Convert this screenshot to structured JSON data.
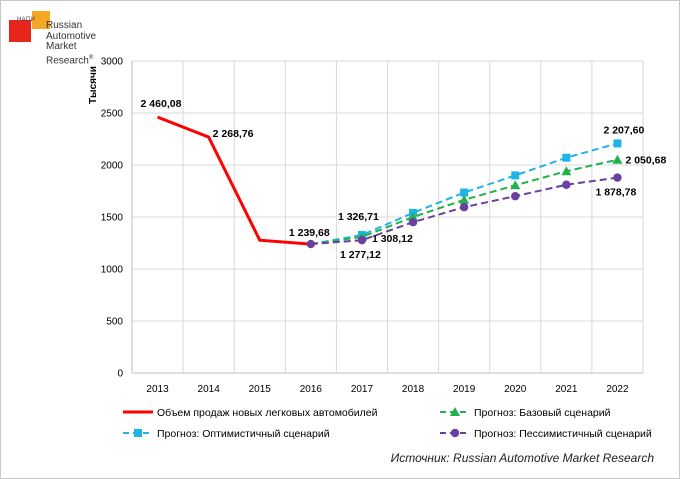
{
  "logo": {
    "small": "НАПИ",
    "lines": [
      "Russian",
      "Automotive",
      "Market",
      "Research"
    ],
    "registered": "®"
  },
  "source": "Источник: Russian Automotive Market Research",
  "chart_data": {
    "type": "line",
    "ylabel": "Тысячи",
    "ylim": [
      0,
      3000
    ],
    "yticks": [
      0,
      500,
      1000,
      1500,
      2000,
      2500,
      3000
    ],
    "categories": [
      "2013",
      "2014",
      "2015",
      "2016",
      "2017",
      "2018",
      "2019",
      "2020",
      "2021",
      "2022"
    ],
    "grid": true,
    "legend_position": "bottom",
    "series": [
      {
        "name": "Объем продаж новых легковых автомобилей",
        "color": "#ff0000",
        "style": "solid",
        "marker": "none",
        "points": [
          {
            "x": "2013",
            "y": 2460.08,
            "label": "2 460,08"
          },
          {
            "x": "2014",
            "y": 2268.76,
            "label": "2 268,76"
          },
          {
            "x": "2015",
            "y": 1277
          },
          {
            "x": "2016",
            "y": 1239.68,
            "label": "1 239,68"
          }
        ]
      },
      {
        "name": "Прогноз: Оптимистичный сценарий",
        "color": "#1fb4e8",
        "style": "dashed",
        "marker": "square",
        "points": [
          {
            "x": "2016",
            "y": 1239.68
          },
          {
            "x": "2017",
            "y": 1326.71,
            "label": "1 326,71"
          },
          {
            "x": "2018",
            "y": 1540
          },
          {
            "x": "2019",
            "y": 1735
          },
          {
            "x": "2020",
            "y": 1900
          },
          {
            "x": "2021",
            "y": 2070
          },
          {
            "x": "2022",
            "y": 2207.6,
            "label": "2 207,60"
          }
        ]
      },
      {
        "name": "Прогноз: Базовый сценарий",
        "color": "#22b14c",
        "style": "dashed",
        "marker": "triangle",
        "points": [
          {
            "x": "2016",
            "y": 1239.68
          },
          {
            "x": "2017",
            "y": 1308.12,
            "label": "1 308,12"
          },
          {
            "x": "2018",
            "y": 1500
          },
          {
            "x": "2019",
            "y": 1665
          },
          {
            "x": "2020",
            "y": 1805
          },
          {
            "x": "2021",
            "y": 1940
          },
          {
            "x": "2022",
            "y": 2050.68,
            "label": "2 050,68"
          }
        ]
      },
      {
        "name": "Прогноз: Пессимистичный сценарий",
        "color": "#6b3fa0",
        "style": "dashed",
        "marker": "circle",
        "points": [
          {
            "x": "2016",
            "y": 1239.68
          },
          {
            "x": "2017",
            "y": 1277.12,
            "label": "1 277,12"
          },
          {
            "x": "2018",
            "y": 1450
          },
          {
            "x": "2019",
            "y": 1595
          },
          {
            "x": "2020",
            "y": 1700
          },
          {
            "x": "2021",
            "y": 1810
          },
          {
            "x": "2022",
            "y": 1878.78,
            "label": "1 878,78"
          }
        ]
      }
    ]
  }
}
